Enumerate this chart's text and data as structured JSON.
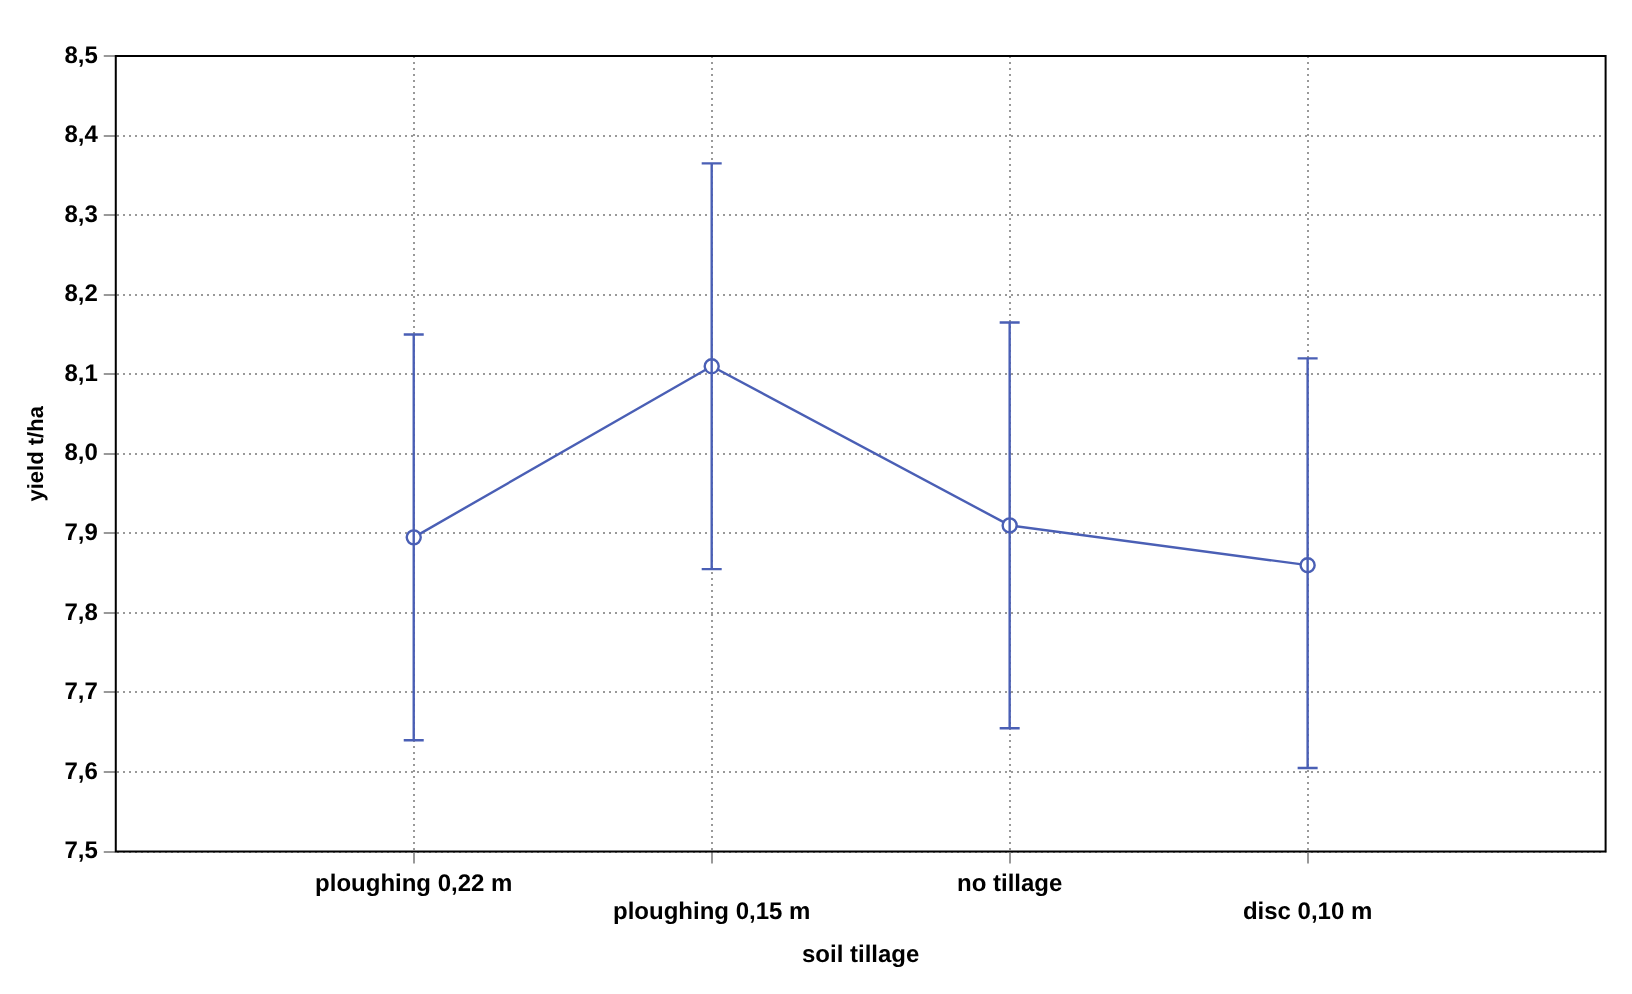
{
  "chart_data": {
    "type": "line",
    "xlabel": "soil tillage",
    "ylabel": "yield t/ha",
    "categories": [
      "ploughing 0,22 m",
      "ploughing 0,15 m",
      "no tillage",
      "disc 0,10 m"
    ],
    "series": [
      {
        "color": "#4a5fb5",
        "values": [
          7.895,
          8.11,
          7.91,
          7.86
        ],
        "errors": [
          [
            7.64,
            8.15
          ],
          [
            7.855,
            8.365
          ],
          [
            7.655,
            8.165
          ],
          [
            7.605,
            8.12
          ]
        ]
      }
    ],
    "ylim": [
      7.5,
      8.5
    ],
    "yticks": [
      {
        "value": 7.5,
        "label": "7,5"
      },
      {
        "value": 7.6,
        "label": "7,6"
      },
      {
        "value": 7.7,
        "label": "7,7"
      },
      {
        "value": 7.8,
        "label": "7,8"
      },
      {
        "value": 7.9,
        "label": "7,9"
      },
      {
        "value": 8.0,
        "label": "8,0"
      },
      {
        "value": 8.1,
        "label": "8,1"
      },
      {
        "value": 8.2,
        "label": "8,2"
      },
      {
        "value": 8.3,
        "label": "8,3"
      },
      {
        "value": 8.4,
        "label": "8,4"
      },
      {
        "value": 8.5,
        "label": "8,5"
      }
    ],
    "grid": true,
    "marker": "circle",
    "line_style": "solid"
  }
}
